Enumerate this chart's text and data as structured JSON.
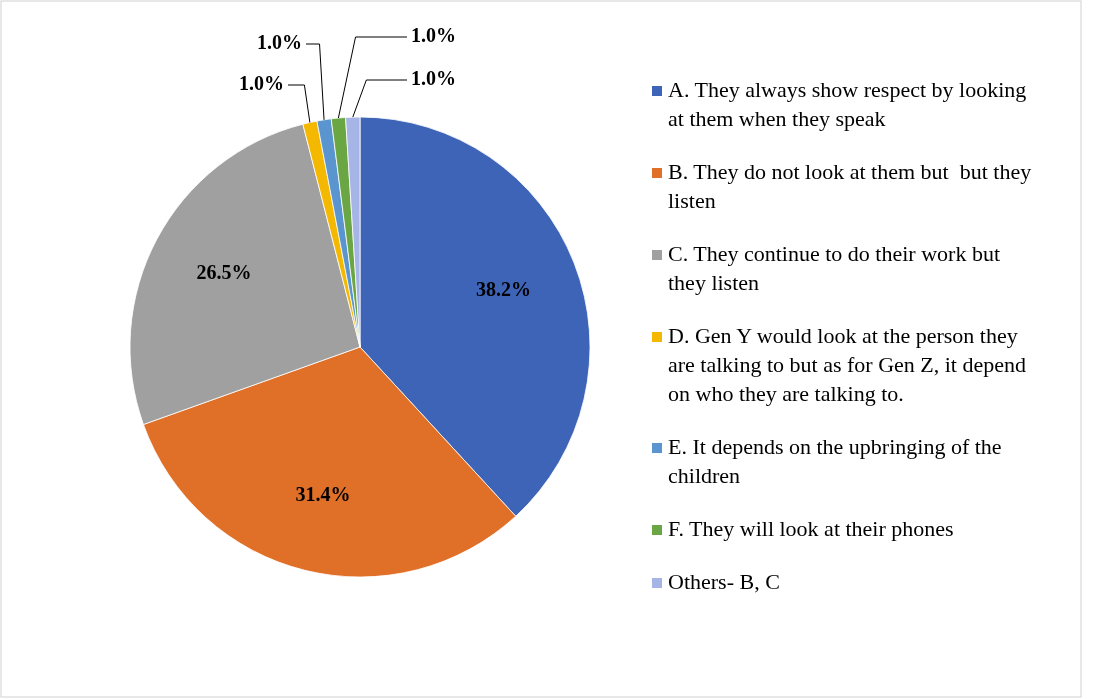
{
  "chart_data": {
    "type": "pie",
    "categories": [
      "A. They always show respect by looking at them when they speak",
      "B. They do not look at them but  but they listen",
      "C. They continue to do their work but they listen",
      "D. Gen Y would look at the person they are talking to but as for Gen Z, it depend on who they are talking to.",
      "E. It depends on the upbringing of the children",
      "F. They will look at their phones",
      "Others- B, C"
    ],
    "values": [
      38.2,
      31.4,
      26.5,
      1.0,
      1.0,
      1.0,
      1.0
    ],
    "value_labels": [
      "38.2%",
      "31.4%",
      "26.5%",
      "1.0%",
      "1.0%",
      "1.0%",
      "1.0%"
    ],
    "colors": [
      "#3e64b8",
      "#e06f28",
      "#a0a0a0",
      "#f5b800",
      "#5a95cf",
      "#6aa744",
      "#a6b4e6"
    ],
    "legend": "right"
  }
}
